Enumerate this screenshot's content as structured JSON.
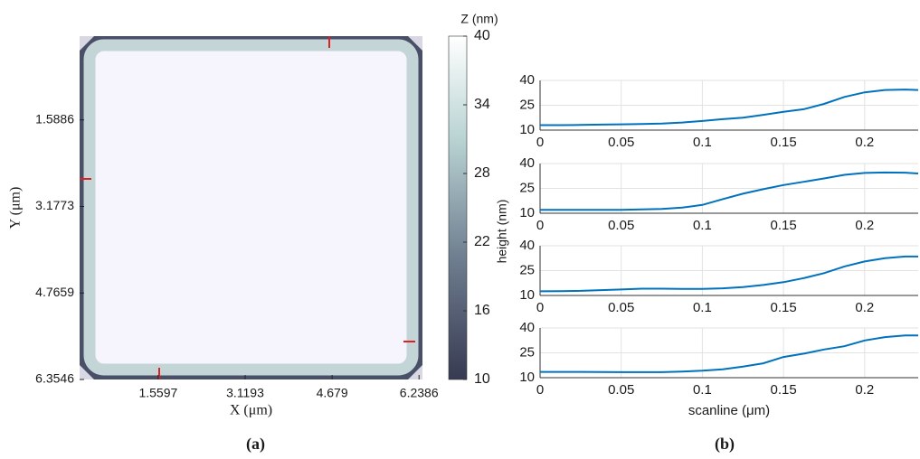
{
  "chart_data": [
    {
      "type": "image",
      "xlabel": "X (μm)",
      "ylabel": "Y (μm)",
      "caption": "(a)",
      "xlim": [
        0.15,
        6.3
      ],
      "ylim": [
        0.05,
        6.3546
      ],
      "xticks": [
        1.5597,
        3.1193,
        4.679,
        6.2386
      ],
      "yticks": [
        1.5886,
        3.1773,
        4.7659,
        6.3546
      ],
      "colorbar": {
        "label": "Z (nm)",
        "lim": [
          10,
          40
        ],
        "ticks": [
          10,
          16,
          22,
          28,
          34,
          40
        ]
      }
    },
    {
      "type": "line",
      "xlabel": "scanline (μm)",
      "ylabel": "height (nm)",
      "caption": "(b)",
      "xlim": [
        0,
        0.233
      ],
      "ylim": [
        10,
        40
      ],
      "xticks": [
        0,
        0.05,
        0.1,
        0.15,
        0.2
      ],
      "yticks": [
        10,
        25,
        40
      ],
      "grid": true,
      "x": [
        0,
        0.0125,
        0.025,
        0.0375,
        0.05,
        0.0625,
        0.075,
        0.0875,
        0.1,
        0.1125,
        0.125,
        0.1375,
        0.15,
        0.1625,
        0.175,
        0.1875,
        0.2,
        0.2125,
        0.225,
        0.233
      ],
      "series": [
        {
          "color": "#0072bd",
          "values": [
            13,
            13,
            13.1,
            13.3,
            13.5,
            13.7,
            14,
            14.6,
            15.5,
            16.6,
            17.5,
            19.2,
            21,
            22.6,
            25.8,
            30,
            32.8,
            34.2,
            34.5,
            34.2
          ]
        },
        {
          "color": "#0072bd",
          "values": [
            12,
            12,
            12,
            12,
            12.1,
            12.3,
            12.6,
            13.4,
            15,
            18.5,
            21.8,
            24.5,
            27,
            29,
            31,
            33.2,
            34.3,
            34.6,
            34.5,
            34
          ]
        },
        {
          "color": "#0072bd",
          "values": [
            12.5,
            12.6,
            12.8,
            13.2,
            13.6,
            14.1,
            14.1,
            14,
            14,
            14.3,
            15,
            16.3,
            18,
            20.5,
            23.5,
            27.5,
            30.5,
            32.5,
            33.5,
            33.5
          ]
        },
        {
          "color": "#0072bd",
          "values": [
            13.5,
            13.5,
            13.5,
            13.4,
            13.3,
            13.3,
            13.3,
            13.7,
            14.2,
            15,
            16.7,
            18.7,
            22.5,
            24.5,
            27,
            29,
            32.5,
            34.5,
            35.5,
            35.5
          ]
        }
      ]
    }
  ]
}
